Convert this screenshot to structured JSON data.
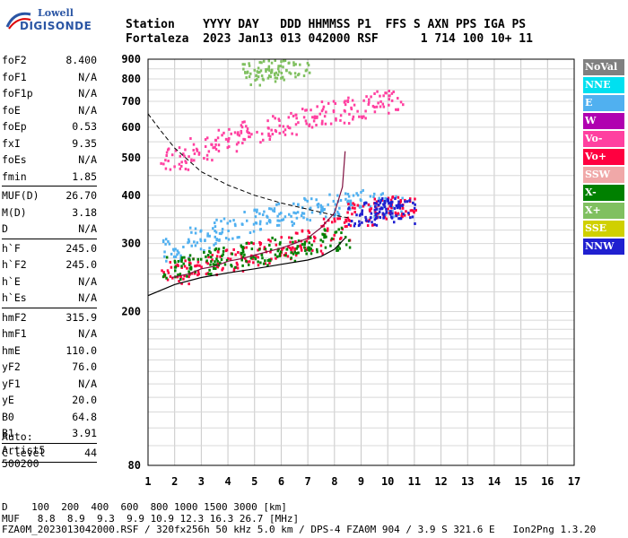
{
  "logo": {
    "line1": "Lowell",
    "line2": "DIGISONDE"
  },
  "header": {
    "row1": "Station    YYYY DAY   DDD HHMMSS P1  FFS S AXN PPS IGA PS",
    "row2": "Fortaleza  2023 Jan13 013 042000 RSF      1 714 100 10+ 11"
  },
  "params": {
    "group1": [
      {
        "label": "foF2",
        "value": "8.400"
      },
      {
        "label": "foF1",
        "value": "N/A"
      },
      {
        "label": "foF1p",
        "value": "N/A"
      },
      {
        "label": "foE",
        "value": "N/A"
      },
      {
        "label": "foEp",
        "value": "0.53"
      },
      {
        "label": "fxI",
        "value": "9.35"
      },
      {
        "label": "foEs",
        "value": "N/A"
      },
      {
        "label": "fmin",
        "value": "1.85"
      }
    ],
    "group2": [
      {
        "label": "MUF(D)",
        "value": "26.70"
      },
      {
        "label": "M(D)",
        "value": "3.18"
      },
      {
        "label": "D",
        "value": "N/A"
      }
    ],
    "group3": [
      {
        "label": "h`F",
        "value": "245.0"
      },
      {
        "label": "h`F2",
        "value": "245.0"
      },
      {
        "label": "h`E",
        "value": "N/A"
      },
      {
        "label": "h`Es",
        "value": "N/A"
      }
    ],
    "group4": [
      {
        "label": "hmF2",
        "value": "315.9"
      },
      {
        "label": "hmF1",
        "value": "N/A"
      },
      {
        "label": "hmE",
        "value": "110.0"
      },
      {
        "label": "yF2",
        "value": "76.0"
      },
      {
        "label": "yF1",
        "value": "N/A"
      },
      {
        "label": "yE",
        "value": "20.0"
      },
      {
        "label": "B0",
        "value": "64.8"
      },
      {
        "label": "B1",
        "value": "3.91"
      }
    ],
    "group5": [
      {
        "label": "C-level",
        "value": "44"
      }
    ]
  },
  "auto": {
    "line1": "Auto:",
    "line2": "Artist5",
    "line3": "500200"
  },
  "footer": {
    "row1": "D    100  200  400  600  800 1000 1500 3000 [km]",
    "row2": "MUF   8.8  8.9  9.3  9.9 10.9 12.3 16.3 26.7 [MHz]",
    "row3": "FZA0M_2023013042000.RSF / 320fx256h 50 kHz 5.0 km / DPS-4 FZA0M 904 / 3.9 S 321.6 E   Ion2Png 1.3.20"
  },
  "legend": [
    {
      "label": "NoVal",
      "color": "#808080"
    },
    {
      "label": "NNE",
      "color": "#00e0f0"
    },
    {
      "label": "E",
      "color": "#50b0f0"
    },
    {
      "label": "W",
      "color": "#b000b0"
    },
    {
      "label": "Vo-",
      "color": "#ff40a0"
    },
    {
      "label": "Vo+",
      "color": "#ff0040"
    },
    {
      "label": "SSW",
      "color": "#f0a8a8"
    },
    {
      "label": "X-",
      "color": "#008000"
    },
    {
      "label": "X+",
      "color": "#80c060"
    },
    {
      "label": "SSE",
      "color": "#d0d000"
    },
    {
      "label": "NNW",
      "color": "#2020d0"
    }
  ],
  "chart_data": {
    "type": "scatter",
    "title": "",
    "xlabel": "",
    "ylabel": "",
    "xlim": [
      1,
      17
    ],
    "ylim": [
      80,
      900
    ],
    "x_ticks": [
      1,
      2,
      3,
      4,
      5,
      6,
      7,
      8,
      9,
      10,
      11,
      12,
      13,
      14,
      15,
      16,
      17
    ],
    "y_ticks": [
      80,
      200,
      300,
      400,
      500,
      600,
      700,
      800,
      900
    ],
    "y_scale": "log",
    "grid": true,
    "legend_placement": "right",
    "series": [
      {
        "name": "E",
        "color": "#50b0f0",
        "x": [
          2,
          3,
          4,
          5,
          6,
          7,
          8,
          9,
          10
        ],
        "y": [
          290,
          310,
          330,
          345,
          360,
          370,
          380,
          390,
          380
        ]
      },
      {
        "name": "Vo+",
        "color": "#ff0040",
        "x": [
          2,
          3,
          4,
          5,
          6,
          7,
          8,
          9,
          10,
          10.5
        ],
        "y": [
          255,
          265,
          275,
          285,
          295,
          305,
          330,
          360,
          375,
          380
        ]
      },
      {
        "name": "X-",
        "color": "#008000",
        "x": [
          2,
          3,
          4,
          5,
          6,
          7,
          8
        ],
        "y": [
          262,
          270,
          278,
          285,
          292,
          300,
          310
        ]
      },
      {
        "name": "NNW",
        "color": "#2020d0",
        "x": [
          9,
          9.5,
          10,
          10.5
        ],
        "y": [
          360,
          370,
          375,
          365
        ]
      },
      {
        "name": "Vo-",
        "color": "#ff40a0",
        "x": [
          2,
          3,
          4,
          5,
          6,
          7,
          8,
          9,
          10
        ],
        "y": [
          500,
          530,
          560,
          590,
          620,
          640,
          660,
          680,
          700
        ]
      },
      {
        "name": "X+",
        "color": "#80c060",
        "x": [
          5,
          5.5,
          6,
          6.5
        ],
        "y": [
          830,
          845,
          860,
          875
        ]
      }
    ],
    "profile_solid": {
      "x": [
        1,
        2,
        3,
        4,
        5,
        6,
        7,
        7.5,
        8,
        8.4
      ],
      "y": [
        220,
        235,
        245,
        252,
        258,
        265,
        272,
        278,
        290,
        310
      ]
    },
    "profile_dashed": {
      "x": [
        1,
        1.5,
        2,
        3,
        4,
        5,
        6,
        7,
        8,
        8.5
      ],
      "y": [
        650,
        585,
        530,
        460,
        425,
        400,
        382,
        368,
        355,
        350
      ]
    },
    "trace_f2": {
      "x": [
        1.9,
        2.5,
        3,
        3.5,
        4,
        4.5,
        5,
        5.5,
        6,
        6.5,
        7,
        7.5,
        8,
        8.3,
        8.4
      ],
      "y": [
        245,
        250,
        258,
        262,
        270,
        274,
        280,
        286,
        292,
        300,
        310,
        330,
        360,
        420,
        520
      ]
    }
  }
}
